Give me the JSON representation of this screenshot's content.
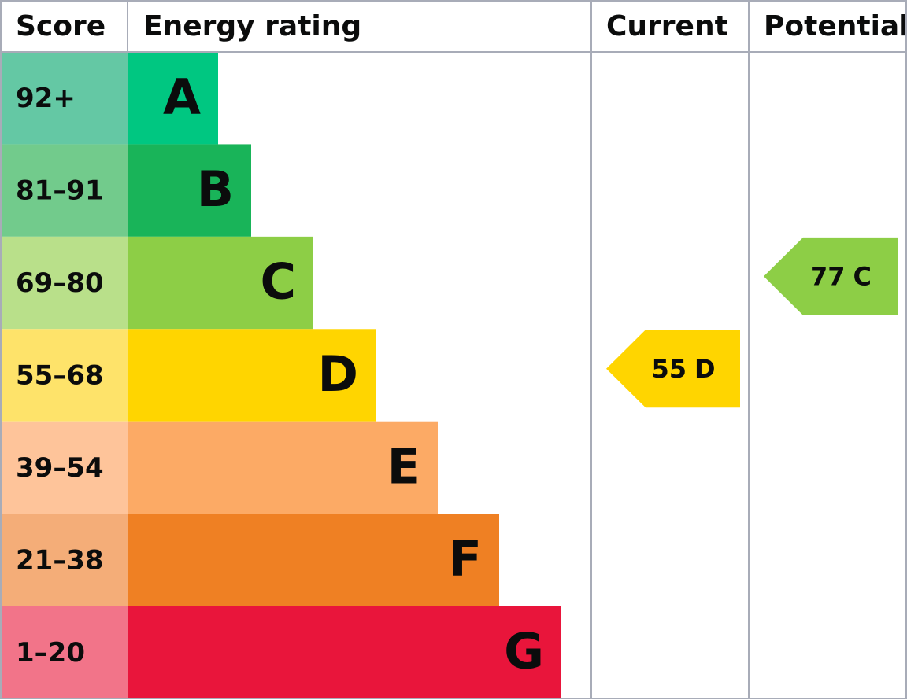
{
  "header": {
    "score": "Score",
    "rating": "Energy rating",
    "current": "Current",
    "potential": "Potential"
  },
  "bands": [
    {
      "range": "92+",
      "rating": "A",
      "score_color": "#64c8a4",
      "color": "#00c781"
    },
    {
      "range": "81–91",
      "rating": "B",
      "score_color": "#72cb8c",
      "color": "#19b459"
    },
    {
      "range": "69–80",
      "rating": "C",
      "score_color": "#b9e08a",
      "color": "#8dce46"
    },
    {
      "range": "55–68",
      "rating": "D",
      "score_color": "#fee36a",
      "color": "#ffd500"
    },
    {
      "range": "39–54",
      "rating": "E",
      "score_color": "#fec49a",
      "color": "#fcaa65"
    },
    {
      "range": "21–38",
      "rating": "F",
      "score_color": "#f4ad78",
      "color": "#ef8023"
    },
    {
      "range": "1–20",
      "rating": "G",
      "score_color": "#f27489",
      "color": "#e9153b"
    }
  ],
  "current": {
    "score": 55,
    "rating": "D"
  },
  "potential": {
    "score": 77,
    "rating": "C"
  }
}
